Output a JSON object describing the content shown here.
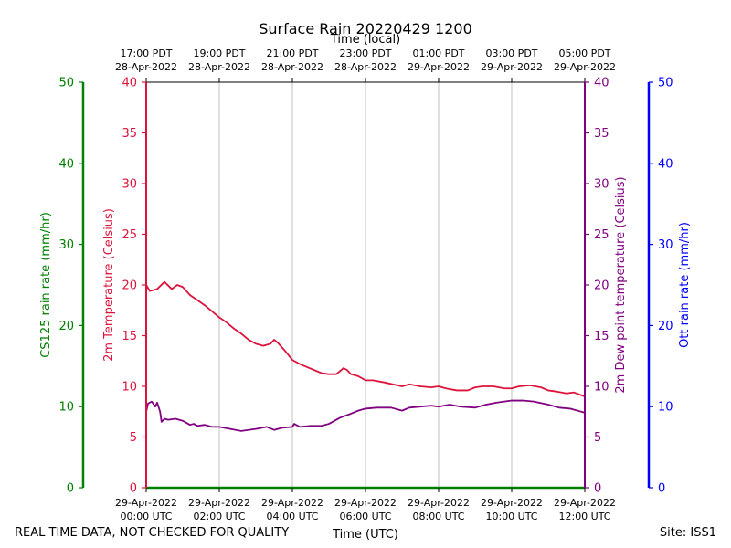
{
  "chart_data": {
    "type": "line",
    "title": "Surface Rain 20220429 1200",
    "top_axis_label": "Time (local)",
    "xlabel": "Time (UTC)",
    "x_unit": "hours since 29-Apr-2022 00:00 UTC",
    "xlim": [
      0,
      12
    ],
    "x_ticks": [
      0,
      2,
      4,
      6,
      8,
      10,
      12
    ],
    "x_tick_labels_utc": [
      [
        "29-Apr-2022",
        "00:00 UTC"
      ],
      [
        "29-Apr-2022",
        "02:00 UTC"
      ],
      [
        "29-Apr-2022",
        "04:00 UTC"
      ],
      [
        "29-Apr-2022",
        "06:00 UTC"
      ],
      [
        "29-Apr-2022",
        "08:00 UTC"
      ],
      [
        "29-Apr-2022",
        "10:00 UTC"
      ],
      [
        "29-Apr-2022",
        "12:00 UTC"
      ]
    ],
    "x_tick_labels_local": [
      [
        "17:00 PDT",
        "28-Apr-2022"
      ],
      [
        "19:00 PDT",
        "28-Apr-2022"
      ],
      [
        "21:00 PDT",
        "28-Apr-2022"
      ],
      [
        "23:00 PDT",
        "28-Apr-2022"
      ],
      [
        "01:00 PDT",
        "29-Apr-2022"
      ],
      [
        "03:00 PDT",
        "29-Apr-2022"
      ],
      [
        "05:00 PDT",
        "29-Apr-2022"
      ]
    ],
    "grid": true,
    "axes": {
      "cs125": {
        "label": "CS125 rain rate (mm/hr)",
        "ylim": [
          0,
          50
        ],
        "ticks": [
          0,
          10,
          20,
          30,
          40,
          50
        ],
        "color": "#008000"
      },
      "temperature": {
        "label": "2m Temperature (Celsius)",
        "ylim": [
          0,
          40
        ],
        "ticks": [
          0,
          5,
          10,
          15,
          20,
          25,
          30,
          35,
          40
        ],
        "color": "#dc143c"
      },
      "dewpoint": {
        "label": "2m Dew point temperature (Celsius)",
        "ylim": [
          0,
          40
        ],
        "ticks": [
          0,
          5,
          10,
          15,
          20,
          25,
          30,
          35,
          40
        ],
        "color": "#800080"
      },
      "ott": {
        "label": "Ott rain rate (mm/hr)",
        "ylim": [
          0,
          50
        ],
        "ticks": [
          0,
          10,
          20,
          30,
          40,
          50
        ],
        "color": "#0000ff"
      }
    },
    "series": [
      {
        "name": "2m Temperature",
        "axis": "temperature",
        "color": "#dc143c",
        "x": [
          0,
          0.1,
          0.3,
          0.5,
          0.7,
          0.85,
          1.0,
          1.2,
          1.4,
          1.6,
          1.8,
          2.0,
          2.2,
          2.4,
          2.6,
          2.8,
          3.0,
          3.2,
          3.4,
          3.5,
          3.6,
          3.8,
          4.0,
          4.2,
          4.4,
          4.6,
          4.8,
          5.0,
          5.2,
          5.4,
          5.5,
          5.6,
          5.8,
          6.0,
          6.2,
          6.5,
          7.0,
          7.2,
          7.5,
          7.8,
          8.0,
          8.2,
          8.5,
          8.8,
          9.0,
          9.2,
          9.5,
          9.8,
          10.0,
          10.2,
          10.5,
          10.8,
          11.0,
          11.2,
          11.5,
          11.7,
          12.0
        ],
        "values": [
          20.0,
          19.4,
          19.6,
          20.3,
          19.6,
          20.0,
          19.8,
          19.0,
          18.5,
          18.0,
          17.4,
          16.8,
          16.3,
          15.7,
          15.2,
          14.6,
          14.2,
          14.0,
          14.2,
          14.6,
          14.3,
          13.5,
          12.6,
          12.2,
          11.9,
          11.6,
          11.3,
          11.2,
          11.2,
          11.8,
          11.6,
          11.2,
          11.0,
          10.6,
          10.6,
          10.4,
          10.0,
          10.2,
          10.0,
          9.9,
          10.0,
          9.8,
          9.6,
          9.6,
          9.9,
          10.0,
          10.0,
          9.8,
          9.8,
          10.0,
          10.1,
          9.9,
          9.6,
          9.5,
          9.3,
          9.4,
          9.0
        ]
      },
      {
        "name": "2m Dew point temperature",
        "axis": "dewpoint",
        "color": "#800080",
        "x": [
          0,
          0.05,
          0.15,
          0.25,
          0.3,
          0.38,
          0.42,
          0.5,
          0.6,
          0.8,
          1.0,
          1.1,
          1.2,
          1.3,
          1.4,
          1.6,
          1.8,
          2.0,
          2.3,
          2.6,
          3.0,
          3.3,
          3.5,
          3.7,
          4.0,
          4.05,
          4.2,
          4.5,
          4.8,
          5.0,
          5.3,
          5.6,
          5.8,
          6.0,
          6.3,
          6.7,
          7.0,
          7.2,
          7.5,
          7.8,
          8.0,
          8.3,
          8.6,
          9.0,
          9.3,
          9.6,
          10.0,
          10.3,
          10.6,
          11.0,
          11.3,
          11.6,
          12.0
        ],
        "values": [
          7.5,
          8.3,
          8.5,
          8.0,
          8.4,
          7.5,
          6.5,
          6.8,
          6.7,
          6.8,
          6.6,
          6.4,
          6.2,
          6.3,
          6.1,
          6.2,
          6.0,
          6.0,
          5.8,
          5.6,
          5.8,
          6.0,
          5.7,
          5.9,
          6.0,
          6.3,
          6.0,
          6.1,
          6.1,
          6.3,
          6.9,
          7.3,
          7.6,
          7.8,
          7.9,
          7.9,
          7.6,
          7.9,
          8.0,
          8.1,
          8.0,
          8.2,
          8.0,
          7.9,
          8.2,
          8.4,
          8.6,
          8.6,
          8.5,
          8.2,
          7.9,
          7.8,
          7.4
        ]
      },
      {
        "name": "CS125 rain rate",
        "axis": "cs125",
        "color": "#008000",
        "x": [
          0,
          12
        ],
        "values": [
          0,
          0
        ]
      }
    ]
  },
  "footer": {
    "left": "REAL TIME DATA, NOT CHECKED FOR QUALITY",
    "right": "Site: ISS1"
  }
}
